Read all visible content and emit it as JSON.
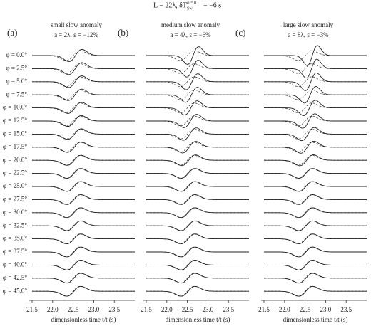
{
  "figure": {
    "title_main": "L = 22λ, δT",
    "title_sub": "Sw",
    "title_sup": "φ = 0",
    "title_end": "= −6 s",
    "rows": [
      "φ = 0.0°",
      "φ = 2.5°",
      "φ = 5.0°",
      "φ = 7.5°",
      "φ = 10.0°",
      "φ = 12.5°",
      "φ = 15.0°",
      "φ = 17.5°",
      "φ = 20.0°",
      "φ = 22.5°",
      "φ = 25.0°",
      "φ = 27.5°",
      "φ = 30.0°",
      "φ = 32.5°",
      "φ = 35.0°",
      "φ = 37.5°",
      "φ = 40.0°",
      "φ = 42.5°",
      "φ = 45.0°"
    ]
  },
  "chart_data": [
    {
      "type": "waveform",
      "label": "(a)",
      "title": "small slow anomaly",
      "subtitle": "a = 2λ, ε = −12%",
      "xlabel": "dimensionless time t/t (s)",
      "xlim": [
        21.5,
        24.0
      ],
      "xticks": [
        21.5,
        {
          "value": 22,
          "label": "22.0"
        },
        22.5,
        {
          "value": 23,
          "label": "23.0"
        },
        23.5
      ]
    },
    {
      "type": "waveform",
      "label": "(b)",
      "title": "medium slow anomaly",
      "subtitle": "a = 4λ, ε = −6%",
      "xlabel": "dimensionless time t/t (s)",
      "xlim": [
        21.5,
        24.0
      ],
      "xticks": [
        21.5,
        {
          "value": 22,
          "label": "22.0"
        },
        22.5,
        {
          "value": 23,
          "label": "23.0"
        },
        23.5
      ]
    },
    {
      "type": "waveform",
      "label": "(c)",
      "title": "large slow anomaly",
      "subtitle": "a = 8λ, ε = −3%",
      "xlabel": "dimensionless time t/t (s)",
      "xlim": [
        21.5,
        24.0
      ],
      "xticks": [
        21.5,
        {
          "value": 22,
          "label": "22.0"
        },
        22.5,
        {
          "value": 23,
          "label": "23.0"
        },
        23.5
      ]
    }
  ]
}
